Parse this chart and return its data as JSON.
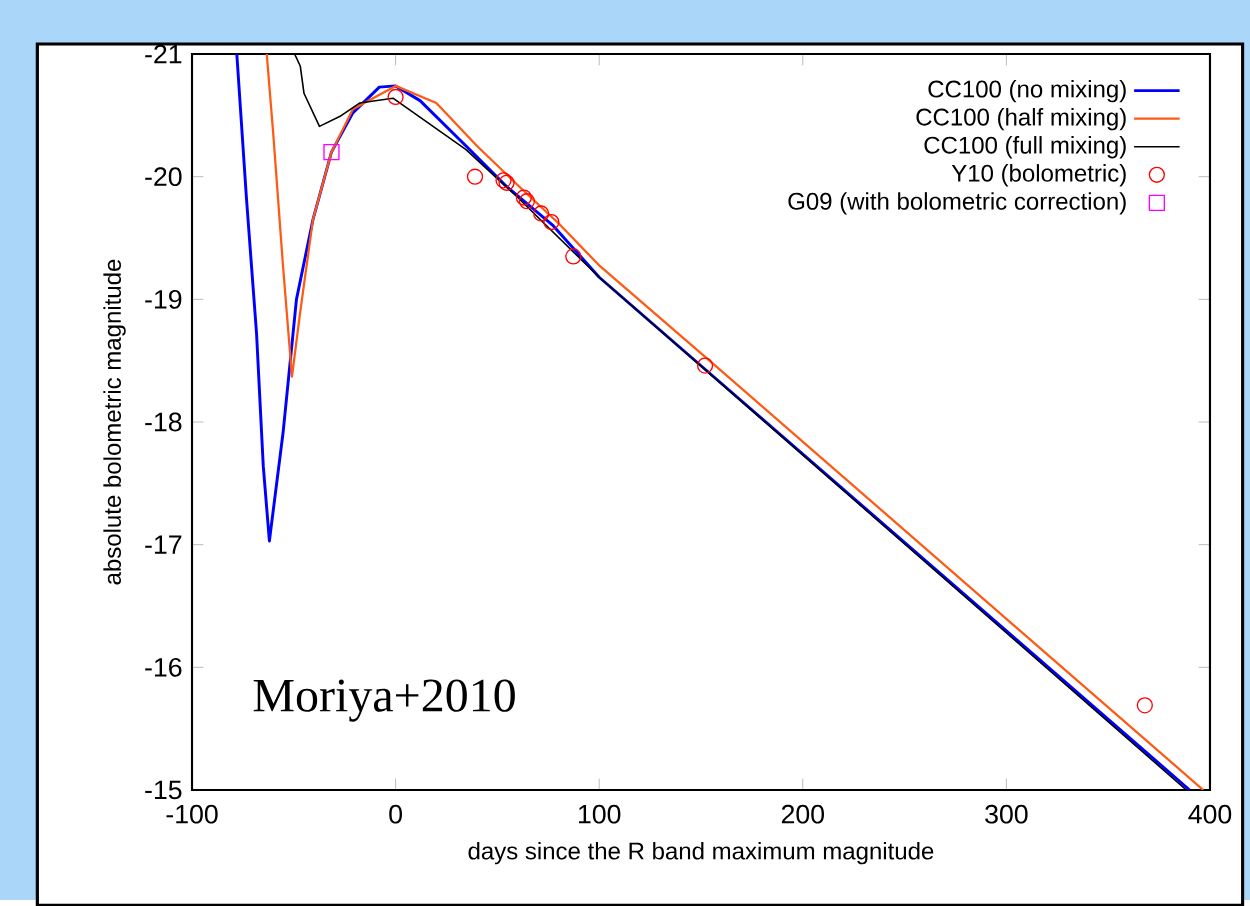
{
  "chart_data": {
    "type": "line",
    "xlabel": "days since the R band maximum magnitude",
    "ylabel": "absolute bolometric magnitude",
    "xlim": [
      -100,
      400
    ],
    "ylim": [
      -15,
      -21
    ],
    "xticks": [
      -100,
      0,
      100,
      200,
      300,
      400
    ],
    "yticks": [
      -21,
      -20,
      -19,
      -18,
      -17,
      -16,
      -15
    ],
    "legend": "top right",
    "grid": false,
    "annotations": [
      "Moriya+2010"
    ],
    "series": [
      {
        "name": "CC100 (no mixing)",
        "color": "#0000ff",
        "type": "line",
        "marker": "none",
        "x": [
          -78,
          -73.2,
          -68.3,
          -65,
          -62,
          -55.3,
          -48.7,
          -40.6,
          -31.5,
          -21,
          -8,
          0,
          12,
          34.6,
          54.5,
          77.4,
          100,
          152.7,
          390
        ],
        "values": [
          -21,
          -19.81,
          -18.72,
          -17.64,
          -17.03,
          -17.91,
          -19.0,
          -19.65,
          -20.2,
          -20.52,
          -20.73,
          -20.74,
          -20.62,
          -20.25,
          -19.92,
          -19.6,
          -19.18,
          -18.42,
          -15
        ]
      },
      {
        "name": "CC100 (half mixing)",
        "color": "#ff5a14",
        "type": "line",
        "marker": "none",
        "x": [
          -63.3,
          -60.1,
          -55.3,
          -50.9,
          -47,
          -40.6,
          -31.5,
          -21,
          0,
          20,
          40,
          60,
          80,
          100.4,
          155.6,
          396.7
        ],
        "values": [
          -21,
          -20.35,
          -19.27,
          -18.37,
          -18.88,
          -19.65,
          -20.2,
          -20.55,
          -20.74,
          -20.6,
          -20.25,
          -19.93,
          -19.62,
          -19.27,
          -18.48,
          -15
        ]
      },
      {
        "name": "CC100 (full mixing)",
        "color": "#000000",
        "type": "line",
        "marker": "none",
        "x": [
          -49.6,
          -46.8,
          -45,
          -37.4,
          -27.5,
          -17.7,
          -1.3,
          34.6,
          60,
          100,
          388.4
        ],
        "values": [
          -21,
          -20.9,
          -20.68,
          -20.41,
          -20.49,
          -20.6,
          -20.64,
          -20.22,
          -19.83,
          -19.18,
          -15
        ]
      },
      {
        "name": "Y10 (bolometric)",
        "color": "#ff0000",
        "type": "scatter",
        "marker": "circle",
        "x": [
          0,
          39,
          53,
          54.5,
          63,
          64.5,
          71.5,
          76.5,
          87.3,
          152,
          368
        ],
        "values": [
          -20.65,
          -20.0,
          -19.97,
          -19.95,
          -19.83,
          -19.8,
          -19.7,
          -19.63,
          -19.35,
          -18.46,
          -15.69
        ]
      },
      {
        "name": "G09 (with bolometric correction)",
        "color": "#ff00ff",
        "type": "scatter",
        "marker": "square",
        "x": [
          -31.5
        ],
        "values": [
          -20.2
        ]
      }
    ]
  }
}
